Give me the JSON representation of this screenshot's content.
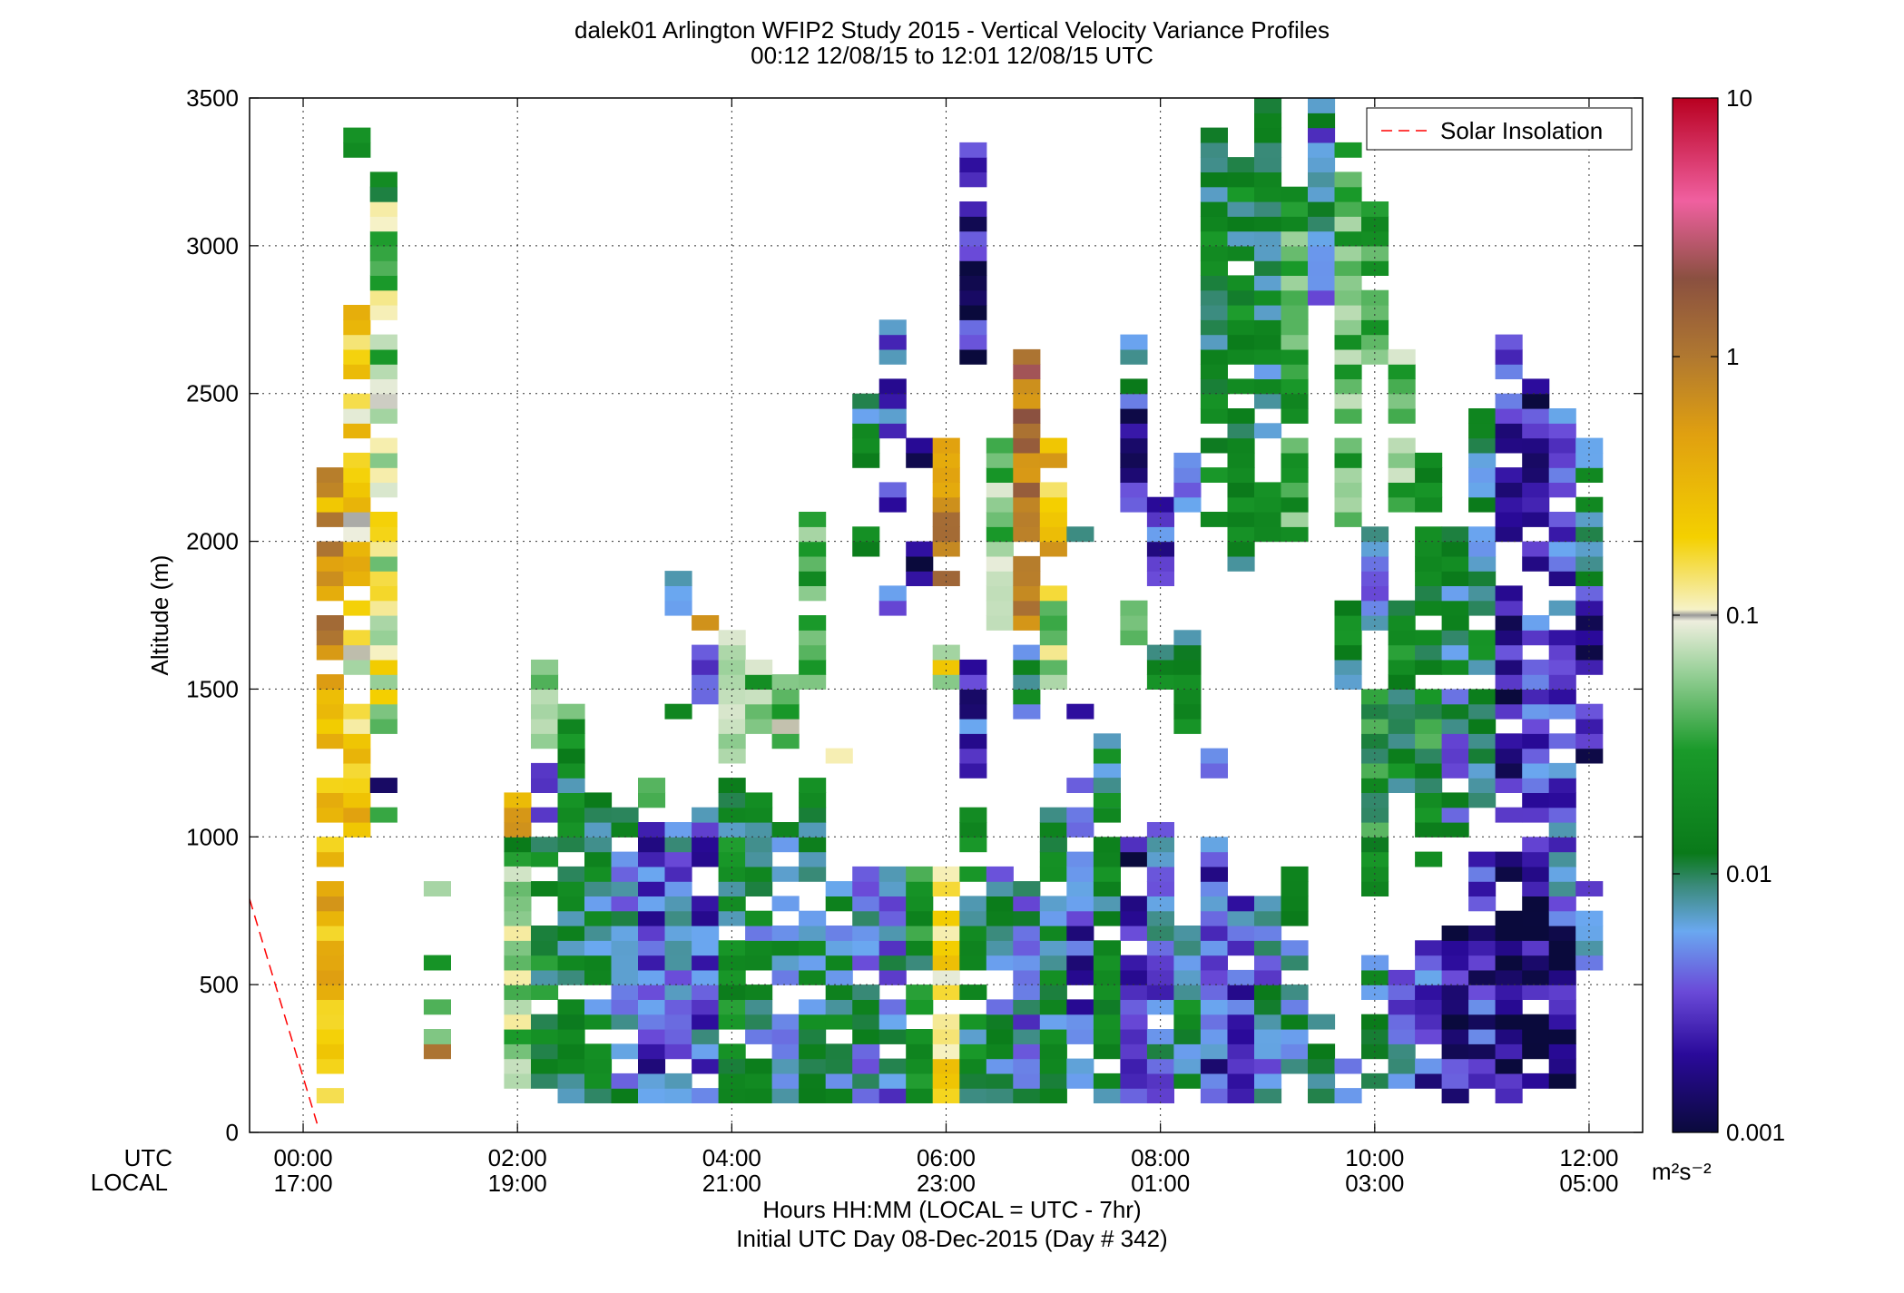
{
  "title_line1": "dalek01 Arlington WFIP2 Study 2015 - Vertical Velocity Variance Profiles",
  "title_line2": "00:12 12/08/15 to 12:01 12/08/15  UTC",
  "xlabel_line1": "Hours HH:MM  (LOCAL = UTC - 7hr)",
  "xlabel_line2": "Initial UTC Day 08-Dec-2015 (Day # 342)",
  "row_label_utc": "UTC",
  "row_label_local": "LOCAL",
  "colorbar_unit": "m²s⁻²",
  "legend_label": "Solar Insolation",
  "chart_data": {
    "type": "heatmap",
    "title": "dalek01 Arlington WFIP2 Study 2015 - Vertical Velocity Variance Profiles",
    "subtitle": "00:12 12/08/15 to 12:01 12/08/15  UTC",
    "xlabel": "Hours HH:MM  (LOCAL = UTC - 7hr)",
    "ylabel": "Altitude (m)",
    "xlim": [
      -0.5,
      12.5
    ],
    "ylim": [
      0,
      3500
    ],
    "x_ticks": [
      0,
      2,
      4,
      6,
      8,
      10,
      12
    ],
    "x_tick_labels_utc": [
      "00:00",
      "02:00",
      "04:00",
      "06:00",
      "08:00",
      "10:00",
      "12:00"
    ],
    "x_tick_labels_local": [
      "17:00",
      "19:00",
      "21:00",
      "23:00",
      "01:00",
      "03:00",
      "05:00"
    ],
    "y_ticks": [
      0,
      500,
      1000,
      1500,
      2000,
      2500,
      3000,
      3500
    ],
    "y_tick_labels": [
      "0",
      "500",
      "1000",
      "1500",
      "2000",
      "2500",
      "3000",
      "3500"
    ],
    "grid": true,
    "legend_position": "top-right",
    "colorbar": {
      "scale": "log",
      "range": [
        0.001,
        10
      ],
      "tick_values": [
        0.001,
        0.01,
        0.1,
        1,
        10
      ],
      "tick_labels": [
        "0.001",
        "0.01",
        "0.1",
        "1",
        "10"
      ],
      "unit": "m²s⁻²",
      "stops": [
        {
          "v": 0.001,
          "c": "#0a0a3c"
        },
        {
          "v": 0.002,
          "c": "#2a0a9a"
        },
        {
          "v": 0.0035,
          "c": "#6a4ad8"
        },
        {
          "v": 0.006,
          "c": "#6aa8f0"
        },
        {
          "v": 0.009,
          "c": "#3a8a7a"
        },
        {
          "v": 0.012,
          "c": "#0a7a1a"
        },
        {
          "v": 0.03,
          "c": "#1a9a2a"
        },
        {
          "v": 0.06,
          "c": "#98d098"
        },
        {
          "v": 0.095,
          "c": "#eeeede"
        },
        {
          "v": 0.1,
          "c": "#999999"
        },
        {
          "v": 0.105,
          "c": "#f6f2c8"
        },
        {
          "v": 0.2,
          "c": "#f4d000"
        },
        {
          "v": 0.5,
          "c": "#e0a010"
        },
        {
          "v": 1.0,
          "c": "#b07830"
        },
        {
          "v": 2.0,
          "c": "#8a5040"
        },
        {
          "v": 4.0,
          "c": "#f060a0"
        },
        {
          "v": 10.0,
          "c": "#b80020"
        }
      ]
    },
    "series": [
      {
        "name": "Solar Insolation",
        "style": "dashed",
        "color": "#ff0000",
        "points": [
          [
            -0.5,
            790
          ],
          [
            0.13,
            30
          ]
        ]
      }
    ],
    "cell_width_hours": 0.25,
    "cell_height_m": 50,
    "columns": [
      {
        "t": 0.25,
        "segments": [
          [
            100,
            1000,
            0.3
          ],
          [
            1050,
            1250,
            0.25
          ],
          [
            1300,
            1550,
            0.35
          ],
          [
            1600,
            1750,
            0.6
          ],
          [
            1800,
            2250,
            0.5
          ]
        ]
      },
      {
        "t": 0.5,
        "segments": [
          [
            1000,
            1450,
            0.25
          ],
          [
            1500,
            1700,
            0.12
          ],
          [
            1750,
            2800,
            0.2
          ],
          [
            3300,
            3400,
            0.02
          ]
        ]
      },
      {
        "t": 0.75,
        "segments": [
          [
            1050,
            1100,
            0.07
          ],
          [
            1150,
            1200,
            0.001
          ],
          [
            1350,
            1450,
            0.03
          ],
          [
            1450,
            1600,
            0.1
          ],
          [
            1600,
            2500,
            0.09
          ],
          [
            2500,
            3200,
            0.06
          ],
          [
            3150,
            3250,
            0.012
          ]
        ]
      },
      {
        "t": 1.25,
        "segments": [
          [
            250,
            300,
            0.5
          ],
          [
            300,
            400,
            0.1
          ],
          [
            400,
            450,
            0.08
          ],
          [
            550,
            600,
            0.02
          ],
          [
            600,
            650,
            0.25
          ],
          [
            800,
            850,
            0.095
          ]
        ]
      },
      {
        "t": 2.0,
        "segments": [
          [
            900,
            1000,
            0.02
          ],
          [
            1000,
            1150,
            0.4
          ],
          [
            150,
            900,
            0.06
          ]
        ]
      },
      {
        "t": 2.25,
        "segments": [
          [
            150,
            1000,
            0.015
          ],
          [
            1050,
            1250,
            0.003
          ],
          [
            1300,
            1600,
            0.04
          ]
        ]
      },
      {
        "t": 2.5,
        "segments": [
          [
            100,
            1300,
            0.012
          ],
          [
            1300,
            1450,
            0.03
          ]
        ]
      },
      {
        "t": 2.75,
        "segments": [
          [
            100,
            1150,
            0.01
          ]
        ]
      },
      {
        "t": 3.0,
        "segments": [
          [
            100,
            1100,
            0.008
          ]
        ]
      },
      {
        "t": 3.25,
        "segments": [
          [
            100,
            1050,
            0.003
          ],
          [
            1100,
            1200,
            0.02
          ]
        ]
      },
      {
        "t": 3.5,
        "segments": [
          [
            100,
            1050,
            0.005
          ],
          [
            1400,
            1450,
            0.008
          ],
          [
            1750,
            1850,
            0.012
          ],
          [
            1850,
            1900,
            0.006
          ]
        ]
      },
      {
        "t": 3.75,
        "segments": [
          [
            100,
            1100,
            0.004
          ],
          [
            1450,
            1650,
            0.006
          ],
          [
            1700,
            1750,
            0.3
          ]
        ]
      },
      {
        "t": 4.0,
        "segments": [
          [
            100,
            1200,
            0.015
          ],
          [
            1250,
            1700,
            0.05
          ]
        ]
      },
      {
        "t": 4.25,
        "segments": [
          [
            100,
            1150,
            0.01
          ],
          [
            1350,
            1600,
            0.04
          ]
        ]
      },
      {
        "t": 4.5,
        "segments": [
          [
            100,
            1050,
            0.008
          ],
          [
            1300,
            1600,
            0.05
          ]
        ]
      },
      {
        "t": 4.75,
        "segments": [
          [
            100,
            1200,
            0.012
          ],
          [
            1500,
            2100,
            0.03
          ]
        ]
      },
      {
        "t": 5.0,
        "segments": [
          [
            100,
            850,
            0.01
          ],
          [
            1250,
            1300,
            0.2
          ]
        ]
      },
      {
        "t": 5.25,
        "segments": [
          [
            100,
            900,
            0.007
          ],
          [
            1950,
            2050,
            0.012
          ],
          [
            2250,
            2500,
            0.012
          ]
        ]
      },
      {
        "t": 5.5,
        "segments": [
          [
            100,
            900,
            0.006
          ],
          [
            1750,
            1850,
            0.003
          ],
          [
            2100,
            2200,
            0.003
          ],
          [
            2350,
            2750,
            0.004
          ]
        ]
      },
      {
        "t": 5.75,
        "segments": [
          [
            100,
            900,
            0.02
          ],
          [
            1850,
            2000,
            0.001
          ],
          [
            2250,
            2350,
            0.001
          ]
        ]
      },
      {
        "t": 6.0,
        "segments": [
          [
            100,
            900,
            0.2
          ],
          [
            1500,
            1650,
            0.12
          ],
          [
            1850,
            2350,
            0.8
          ]
        ]
      },
      {
        "t": 6.25,
        "segments": [
          [
            100,
            1100,
            0.015
          ],
          [
            1200,
            1700,
            0.003
          ],
          [
            2600,
            3350,
            0.002
          ]
        ]
      },
      {
        "t": 6.5,
        "segments": [
          [
            100,
            900,
            0.008
          ],
          [
            1700,
            2350,
            0.05
          ]
        ]
      },
      {
        "t": 6.75,
        "segments": [
          [
            100,
            900,
            0.006
          ],
          [
            1400,
            1650,
            0.01
          ],
          [
            1700,
            2650,
            1.2
          ]
        ]
      },
      {
        "t": 7.0,
        "segments": [
          [
            100,
            1100,
            0.01
          ],
          [
            1500,
            1850,
            0.08
          ],
          [
            1950,
            2350,
            0.3
          ]
        ]
      },
      {
        "t": 7.25,
        "segments": [
          [
            100,
            1250,
            0.003
          ],
          [
            1350,
            1450,
            0.004
          ],
          [
            2000,
            2050,
            0.012
          ]
        ]
      },
      {
        "t": 7.5,
        "segments": [
          [
            100,
            1350,
            0.012
          ],
          [
            1100,
            1250,
            0.012
          ]
        ]
      },
      {
        "t": 7.75,
        "segments": [
          [
            100,
            1000,
            0.002
          ],
          [
            1650,
            1800,
            0.06
          ],
          [
            2100,
            2450,
            0.002
          ],
          [
            2450,
            2700,
            0.006
          ]
        ]
      },
      {
        "t": 8.0,
        "segments": [
          [
            100,
            1050,
            0.005
          ],
          [
            1500,
            1650,
            0.012
          ],
          [
            1850,
            2150,
            0.003
          ]
        ]
      },
      {
        "t": 8.25,
        "segments": [
          [
            100,
            750,
            0.012
          ],
          [
            1350,
            1700,
            0.012
          ],
          [
            2050,
            2300,
            0.003
          ]
        ]
      },
      {
        "t": 8.5,
        "segments": [
          [
            100,
            1000,
            0.003
          ],
          [
            1150,
            1300,
            0.003
          ],
          [
            2050,
            3400,
            0.015
          ]
        ]
      },
      {
        "t": 8.75,
        "segments": [
          [
            100,
            800,
            0.004
          ],
          [
            1900,
            3300,
            0.014
          ]
        ]
      },
      {
        "t": 9.0,
        "segments": [
          [
            100,
            900,
            0.006
          ],
          [
            2000,
            3500,
            0.012
          ]
        ]
      },
      {
        "t": 9.25,
        "segments": [
          [
            200,
            900,
            0.008
          ],
          [
            2000,
            3200,
            0.03
          ]
        ]
      },
      {
        "t": 9.5,
        "segments": [
          [
            100,
            400,
            0.008
          ],
          [
            2800,
            3500,
            0.006
          ]
        ]
      },
      {
        "t": 9.75,
        "segments": [
          [
            100,
            300,
            0.007
          ],
          [
            1500,
            1800,
            0.015
          ],
          [
            2050,
            3350,
            0.04
          ]
        ]
      },
      {
        "t": 10.0,
        "segments": [
          [
            150,
            600,
            0.01
          ],
          [
            750,
            1500,
            0.02
          ],
          [
            1700,
            2050,
            0.006
          ],
          [
            2600,
            3150,
            0.03
          ]
        ]
      },
      {
        "t": 10.25,
        "segments": [
          [
            150,
            550,
            0.006
          ],
          [
            1100,
            1800,
            0.015
          ],
          [
            2100,
            2650,
            0.04
          ]
        ]
      },
      {
        "t": 10.5,
        "segments": [
          [
            150,
            650,
            0.003
          ],
          [
            900,
            1500,
            0.02
          ],
          [
            1550,
            2300,
            0.012
          ]
        ]
      },
      {
        "t": 10.75,
        "segments": [
          [
            100,
            700,
            0.002
          ],
          [
            1000,
            1500,
            0.006
          ],
          [
            1550,
            2050,
            0.012
          ]
        ]
      },
      {
        "t": 11.0,
        "segments": [
          [
            150,
            950,
            0.0025
          ],
          [
            1100,
            1700,
            0.012
          ],
          [
            1700,
            2450,
            0.01
          ]
        ]
      },
      {
        "t": 11.25,
        "segments": [
          [
            100,
            950,
            0.0015
          ],
          [
            1050,
            1850,
            0.002
          ],
          [
            2000,
            2700,
            0.003
          ]
        ]
      },
      {
        "t": 11.5,
        "segments": [
          [
            150,
            1000,
            0.0015
          ],
          [
            1000,
            1800,
            0.003
          ],
          [
            1900,
            2550,
            0.002
          ]
        ]
      },
      {
        "t": 11.75,
        "segments": [
          [
            150,
            700,
            0.0015
          ],
          [
            700,
            1250,
            0.004
          ],
          [
            1300,
            2450,
            0.0035
          ]
        ]
      },
      {
        "t": 12.0,
        "segments": [
          [
            550,
            850,
            0.004
          ],
          [
            1250,
            1850,
            0.002
          ],
          [
            1850,
            2350,
            0.01
          ]
        ]
      }
    ]
  }
}
